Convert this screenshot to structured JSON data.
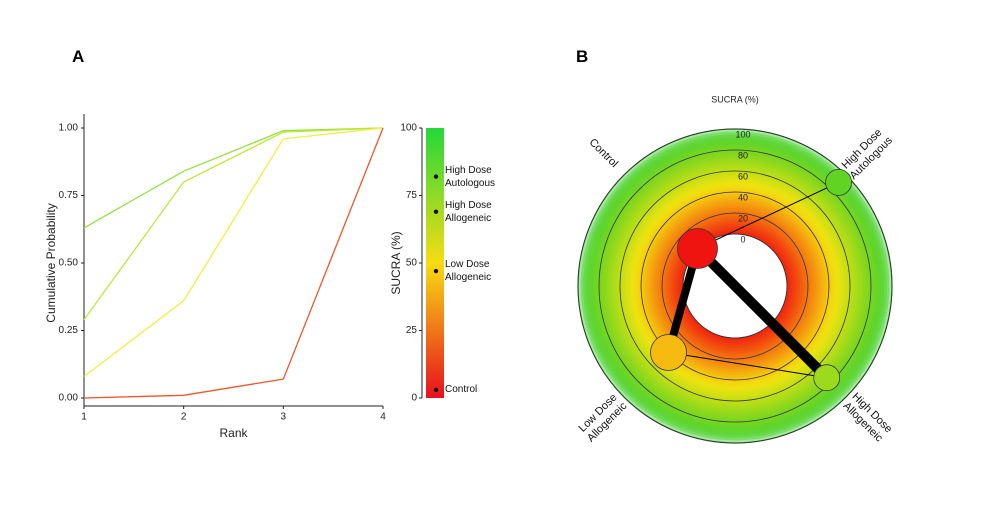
{
  "chart_data": [
    {
      "type": "line",
      "panel": "A",
      "xlabel": "Rank",
      "ylabel": "Cumulative Probability",
      "x": [
        1,
        2,
        3,
        4
      ],
      "xlim": [
        1,
        4
      ],
      "xticks": [
        1,
        2,
        3,
        4
      ],
      "ylim": [
        0,
        1
      ],
      "yticks": [
        {
          "value": 0,
          "label": "0.00"
        },
        {
          "value": 0.25,
          "label": "0.25"
        },
        {
          "value": 0.5,
          "label": "0.50"
        },
        {
          "value": 0.75,
          "label": "0.75"
        },
        {
          "value": 1,
          "label": "1.00"
        }
      ],
      "series": [
        {
          "name": "High Dose Autologous",
          "color": "#93e23c",
          "values": [
            0.63,
            0.84,
            0.99,
            1.0
          ]
        },
        {
          "name": "High Dose Allogeneic",
          "color": "#bfe83a",
          "values": [
            0.29,
            0.8,
            0.985,
            1.0
          ]
        },
        {
          "name": "Low Dose Allogeneic",
          "color": "#f2ee40",
          "values": [
            0.08,
            0.36,
            0.96,
            1.0
          ]
        },
        {
          "name": "Control",
          "color": "#f0542a",
          "values": [
            0.0,
            0.01,
            0.07,
            1.0
          ]
        }
      ],
      "colorbar": {
        "label": "SUCRA (%)",
        "lim": [
          0,
          100
        ],
        "ticks": [
          0,
          25,
          50,
          75,
          100
        ],
        "colors": [
          "#e8101e",
          "#f7dc12",
          "#24d83a"
        ],
        "values": [
          82,
          69,
          47,
          3
        ]
      }
    },
    {
      "type": "network",
      "panel": "B",
      "title": "SUCRA (%)",
      "rlim": [
        0,
        100
      ],
      "rticks": [
        0,
        20,
        40,
        60,
        80,
        100
      ],
      "colors": [
        "#f01010",
        "#f7e410",
        "#3cd028"
      ],
      "nodes": [
        {
          "label": "Control",
          "value": 1,
          "size": 20
        },
        {
          "label": "High Dose Autologous",
          "value": 90,
          "size": 13
        },
        {
          "label": "High Dose Allogeneic",
          "value": 74,
          "size": 13
        },
        {
          "label": "Low Dose Allogeneic",
          "value": 40,
          "size": 18
        }
      ],
      "edges": [
        {
          "from": 0,
          "to": 1,
          "weight": 1
        },
        {
          "from": 0,
          "to": 2,
          "weight": 10
        },
        {
          "from": 0,
          "to": 3,
          "weight": 8
        },
        {
          "from": 3,
          "to": 2,
          "weight": 1
        }
      ]
    }
  ]
}
